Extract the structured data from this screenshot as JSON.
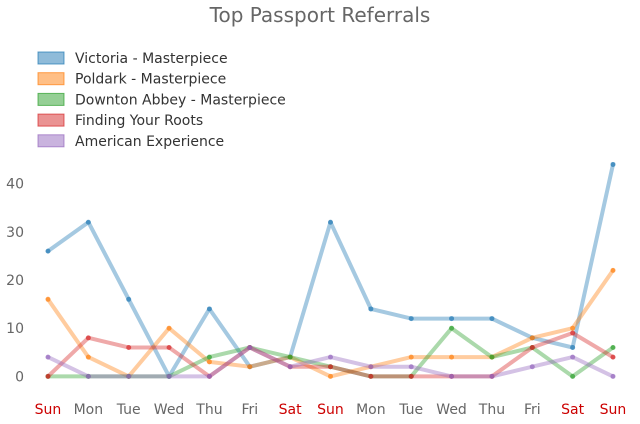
{
  "chart_data": {
    "type": "line",
    "title": "Top Passport Referrals",
    "xlabel": "",
    "ylabel": "",
    "categories": [
      "Sun",
      "Mon",
      "Tue",
      "Wed",
      "Thu",
      "Fri",
      "Sat",
      "Sun",
      "Mon",
      "Tue",
      "Wed",
      "Thu",
      "Fri",
      "Sat",
      "Sun"
    ],
    "weekend_categories": [
      0,
      6,
      7,
      13,
      14
    ],
    "weekend_color": "#cc0000",
    "yticks": [
      0,
      10,
      20,
      30,
      40
    ],
    "ylim": [
      -2,
      47
    ],
    "grid": false,
    "legend_position": "top-left",
    "series": [
      {
        "name": "Victoria - Masterpiece",
        "color": "#1f77b4",
        "values": [
          26,
          32,
          16,
          0,
          14,
          2,
          4,
          32,
          14,
          12,
          12,
          12,
          8,
          6,
          44
        ]
      },
      {
        "name": "Poldark - Masterpiece",
        "color": "#ff7f0e",
        "values": [
          16,
          4,
          0,
          10,
          3,
          2,
          4,
          0,
          2,
          4,
          4,
          4,
          8,
          10,
          22
        ]
      },
      {
        "name": "Downton Abbey - Masterpiece",
        "color": "#2ca02c",
        "values": [
          0,
          0,
          0,
          0,
          4,
          6,
          4,
          2,
          0,
          0,
          10,
          4,
          6,
          0,
          6
        ]
      },
      {
        "name": "Finding Your Roots",
        "color": "#d62728",
        "values": [
          0,
          8,
          6,
          6,
          0,
          6,
          2,
          2,
          0,
          0,
          0,
          0,
          6,
          9,
          4
        ]
      },
      {
        "name": "American Experience",
        "color": "#9467bd",
        "values": [
          4,
          0,
          0,
          0,
          0,
          6,
          2,
          4,
          2,
          2,
          0,
          0,
          2,
          4,
          0
        ]
      }
    ]
  }
}
